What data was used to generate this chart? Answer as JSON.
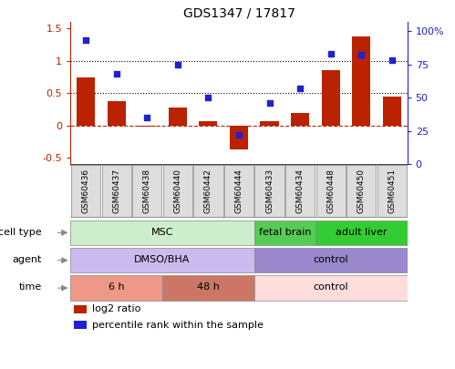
{
  "title": "GDS1347 / 17817",
  "samples": [
    "GSM60436",
    "GSM60437",
    "GSM60438",
    "GSM60440",
    "GSM60442",
    "GSM60444",
    "GSM60433",
    "GSM60434",
    "GSM60448",
    "GSM60450",
    "GSM60451"
  ],
  "log2_ratio": [
    0.75,
    0.38,
    -0.02,
    0.28,
    0.07,
    -0.37,
    0.07,
    0.2,
    0.85,
    1.38,
    0.45
  ],
  "percentile_rank": [
    93,
    68,
    35,
    75,
    50,
    22,
    46,
    57,
    83,
    82,
    78
  ],
  "bar_color": "#bb2200",
  "dot_color": "#2222cc",
  "ylim_left": [
    -0.6,
    1.6
  ],
  "ylim_right": [
    0,
    106.67
  ],
  "yticks_left": [
    -0.5,
    0.0,
    0.5,
    1.0,
    1.5
  ],
  "ytick_labels_left": [
    "-0.5",
    "0",
    "0.5",
    "1",
    "1.5"
  ],
  "yticks_right": [
    0,
    25,
    50,
    75,
    100
  ],
  "ytick_labels_right": [
    "0",
    "25",
    "50",
    "75",
    "100%"
  ],
  "cell_type_groups": [
    {
      "label": "MSC",
      "start": 0,
      "end": 6,
      "color": "#cceecc"
    },
    {
      "label": "fetal brain",
      "start": 6,
      "end": 8,
      "color": "#55cc55"
    },
    {
      "label": "adult liver",
      "start": 8,
      "end": 11,
      "color": "#33cc33"
    }
  ],
  "agent_groups": [
    {
      "label": "DMSO/BHA",
      "start": 0,
      "end": 6,
      "color": "#ccbbee"
    },
    {
      "label": "control",
      "start": 6,
      "end": 11,
      "color": "#9988cc"
    }
  ],
  "time_groups": [
    {
      "label": "6 h",
      "start": 0,
      "end": 3,
      "color": "#ee9988"
    },
    {
      "label": "48 h",
      "start": 3,
      "end": 6,
      "color": "#cc7766"
    },
    {
      "label": "control",
      "start": 6,
      "end": 11,
      "color": "#ffdddd"
    }
  ],
  "row_labels": [
    "cell type",
    "agent",
    "time"
  ],
  "legend_items": [
    {
      "label": "log2 ratio",
      "color": "#bb2200"
    },
    {
      "label": "percentile rank within the sample",
      "color": "#2222cc"
    }
  ],
  "label_fontsize": 8,
  "tick_fontsize": 8,
  "annotation_fontsize": 8
}
